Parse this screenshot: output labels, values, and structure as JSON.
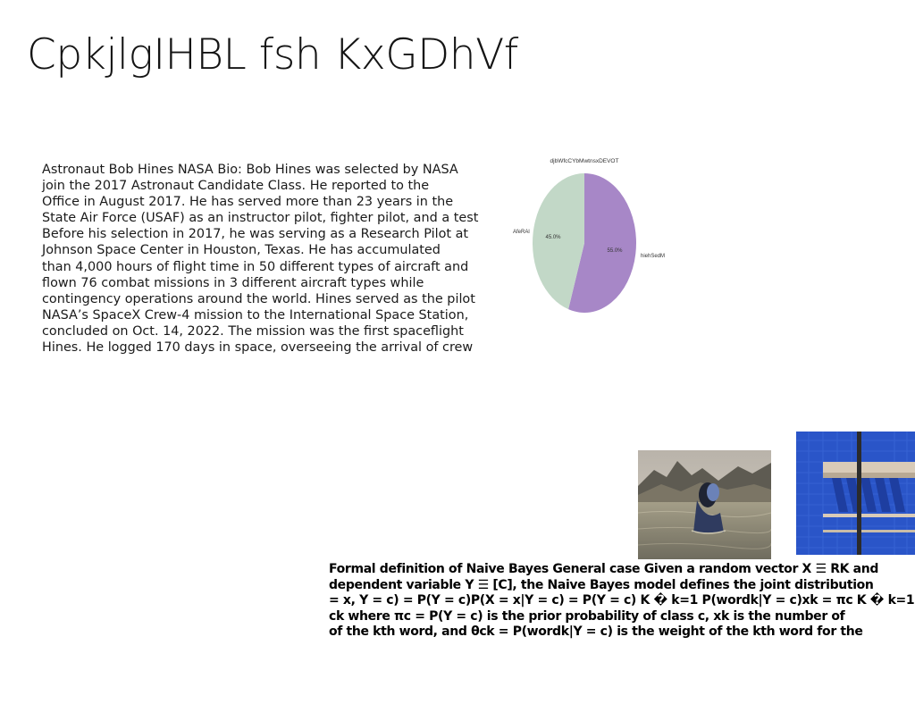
{
  "title": "CpkjlgIHBL fsh KxGDhVf",
  "bio_lines": [
    "Astronaut Bob Hines NASA Bio: Bob Hines was selected by NASA",
    "join the 2017 Astronaut Candidate Class. He reported to the",
    "Office in August 2017. He has served more than 23 years in the",
    "State Air Force (USAF) as an instructor pilot, fighter pilot, and a test",
    "Before his selection in 2017, he was serving as a Research Pilot at",
    "Johnson Space Center in Houston, Texas. He has accumulated",
    "than 4,000 hours of flight time in 50 different types of aircraft and",
    "flown 76 combat missions in 3 different aircraft types while",
    "contingency operations around the world. Hines served as the pilot",
    "NASA’s SpaceX Crew-4 mission to the International Space Station,",
    "concluded on Oct. 14, 2022. The mission was the first spaceflight",
    "Hines. He logged 170 days in space, overseeing the arrival of crew"
  ],
  "chart_data": {
    "type": "pie",
    "title": "djbWfcCYbMwtnsxDEVOT",
    "slices": [
      {
        "label": "AfeRAl",
        "value": 45.0,
        "display": "45.0%",
        "color": "#c2d8c7"
      },
      {
        "label": "hiehSedM",
        "value": 55.0,
        "display": "55.0%",
        "color": "#a787c7"
      }
    ],
    "start_angle_deg": 90,
    "direction": "clockwise-from-top"
  },
  "images": [
    {
      "name": "woman-in-water-photo",
      "colors": {
        "sky": "#c9c3b8",
        "mountain": "#5c5a52",
        "water": "#8e8a76",
        "figure": "#3a4a6e"
      }
    },
    {
      "name": "blue-building-photo",
      "colors": {
        "wall": "#2a55c8",
        "shade": "#1e3ea0",
        "beam": "#d9cbb8",
        "pole": "#2b2b2b"
      }
    }
  ],
  "bayes_lines": [
    "Formal definition of Naive Bayes General case Given a random vector X ☰ RK and",
    "dependent variable Y ☰ [C], the Naive Bayes model defines the joint distribution",
    "= x, Y = c) = P(Y = c)P(X = x|Y = c) = P(Y = c) K � k=1 P(wordk|Y = c)xk = πc K � k=1",
    "ck where πc = P(Y = c) is the prior probability of class c, xk is the number of",
    "of the kth word, and θck = P(wordk|Y = c) is the weight of the kth word for the"
  ]
}
